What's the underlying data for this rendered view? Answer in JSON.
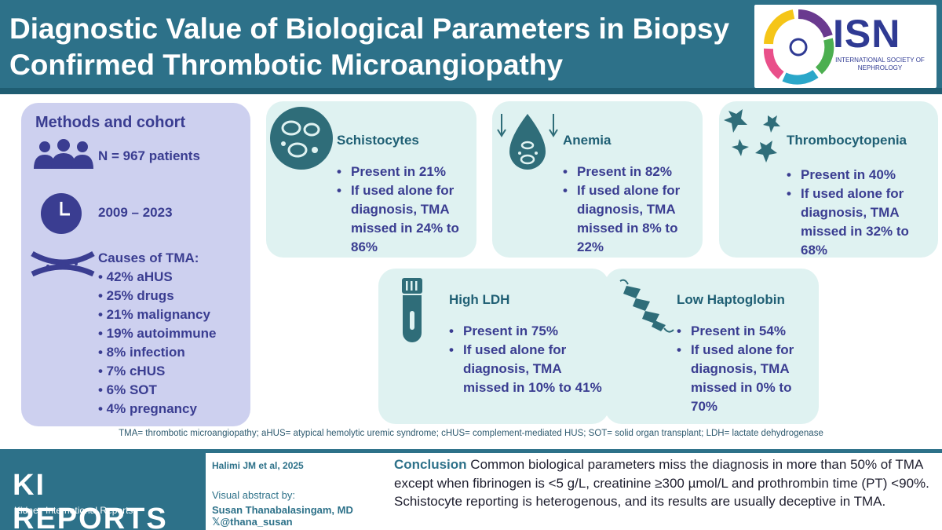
{
  "header": {
    "title": "Diagnostic Value of Biological Parameters in Biopsy Confirmed Thrombotic Microangiopathy",
    "logo_text": "ISN",
    "logo_sub": "INTERNATIONAL SOCIETY OF NEPHROLOGY"
  },
  "methods": {
    "title": "Methods and cohort",
    "patients": "N = 967 patients",
    "period": "2009 – 2023",
    "causes_title": "Causes of TMA:",
    "causes": [
      "• 42% aHUS",
      "• 25% drugs",
      "• 21% malignancy",
      "• 19% autoimmune",
      "• 8% infection",
      "• 7% cHUS",
      "• 6% SOT",
      "• 4% pregnancy"
    ]
  },
  "cards": {
    "schistocytes": {
      "title": "Schistocytes",
      "present": "Present in 21%",
      "missed": "If used alone for diagnosis, TMA missed in 24% to 86%"
    },
    "anemia": {
      "title": "Anemia",
      "present": "Present in 82%",
      "missed": "If used alone for diagnosis, TMA missed in 8% to 22%"
    },
    "thrombocytopenia": {
      "title": "Thrombocytopenia",
      "present": "Present in 40%",
      "missed": "If used alone for diagnosis, TMA missed in 32% to 68%"
    },
    "ldh": {
      "title": "High LDH",
      "present": "Present in 75%",
      "missed": "If used alone for diagnosis, TMA missed in 10% to 41%"
    },
    "haptoglobin": {
      "title": "Low Haptoglobin",
      "present": "Present in 54%",
      "missed": "If used alone for diagnosis, TMA missed in 0% to 70%"
    }
  },
  "footnote": "TMA= thrombotic microangiopathy; aHUS= atypical hemolytic uremic syndrome; cHUS= complement-mediated HUS; SOT= solid organ transplant; LDH= lactate dehydrogenase",
  "footer": {
    "brand": "KI REPORTS",
    "brand_sub": "Kidney International Reports",
    "citation": "Halimi JM et al, 2025",
    "visual_by": "Visual abstract by:",
    "author": "Susan Thanabalasingam, MD",
    "handle": "𝕏@thana_susan",
    "conclusion_label": "Conclusion",
    "conclusion_text": " Common biological parameters miss the diagnosis in more than 50% of TMA except when fibrinogen is <5 g/L, creatinine ≥300 µmol/L and prothrombin time (PT) <90%. Schistocyte reporting is heterogenous, and its results are usually deceptive in TMA."
  },
  "colors": {
    "header": "#2d7189",
    "methods_bg": "#cdd0ef",
    "card_bg": "#dff2f1",
    "text_navy": "#3a3d91",
    "teal": "#1f5f74"
  }
}
